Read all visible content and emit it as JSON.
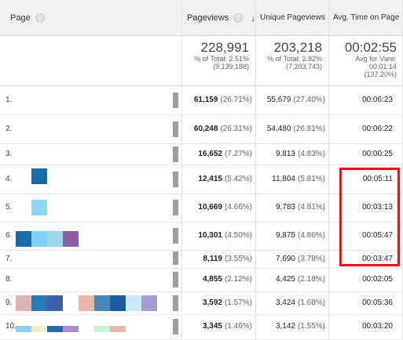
{
  "header": {
    "page": "Page",
    "pageviews": "Pageviews",
    "unique_pageviews": "Unique Pageviews",
    "avg_time": "Avg. Time on Page",
    "help_icon": "?"
  },
  "totals": {
    "pageviews_big": "228,991",
    "pageviews_sub1": "% of Total: 2.51%",
    "pageviews_sub2": "(9,139,188)",
    "unique_big": "203,218",
    "unique_sub1": "% of Total: 2.82%",
    "unique_sub2": "(7,203,743)",
    "avg_big": "00:02:55",
    "avg_sub1": "Avg for View:",
    "avg_sub2": "00:01:14",
    "avg_sub3": "(137.20%)"
  },
  "rows": [
    {
      "num": "1.",
      "pv": "61,159",
      "pv_pct": "(26.71%)",
      "upv": "55,679",
      "upv_pct": "(27.40%)",
      "avg": "00:06:23"
    },
    {
      "num": "2.",
      "pv": "60,248",
      "pv_pct": "(26.31%)",
      "upv": "54,480",
      "upv_pct": "(26.81%)",
      "avg": "00:06:22"
    },
    {
      "num": "3.",
      "pv": "16,652",
      "pv_pct": "(7.27%)",
      "upv": "9,813",
      "upv_pct": "(4.83%)",
      "avg": "00:00:25"
    },
    {
      "num": "4.",
      "pv": "12,415",
      "pv_pct": "(5.42%)",
      "upv": "11,804",
      "upv_pct": "(5.81%)",
      "avg": "00:05:11"
    },
    {
      "num": "5.",
      "pv": "10,669",
      "pv_pct": "(4.66%)",
      "upv": "9,783",
      "upv_pct": "(4.81%)",
      "avg": "00:03:13"
    },
    {
      "num": "6.",
      "pv": "10,301",
      "pv_pct": "(4.50%)",
      "upv": "9,875",
      "upv_pct": "(4.86%)",
      "avg": "00:05:47"
    },
    {
      "num": "7.",
      "pv": "8,119",
      "pv_pct": "(3.55%)",
      "upv": "7,690",
      "upv_pct": "(3.78%)",
      "avg": "00:03:47"
    },
    {
      "num": "8.",
      "pv": "4,855",
      "pv_pct": "(2.12%)",
      "upv": "4,425",
      "upv_pct": "(2.18%)",
      "avg": "00:02:05"
    },
    {
      "num": "9.",
      "pv": "3,592",
      "pv_pct": "(1.57%)",
      "upv": "3,424",
      "upv_pct": "(1.68%)",
      "avg": "00:05:36"
    },
    {
      "num": "10.",
      "pv": "3,345",
      "pv_pct": "(1.46%)",
      "upv": "3,142",
      "upv_pct": "(1.55%)",
      "avg": "00:03:20"
    }
  ],
  "colors": {
    "highlight_border": "#e0161b",
    "swatch_dark_blue": "#1a6aa8",
    "swatch_light_blue": "#8fd8f5"
  }
}
